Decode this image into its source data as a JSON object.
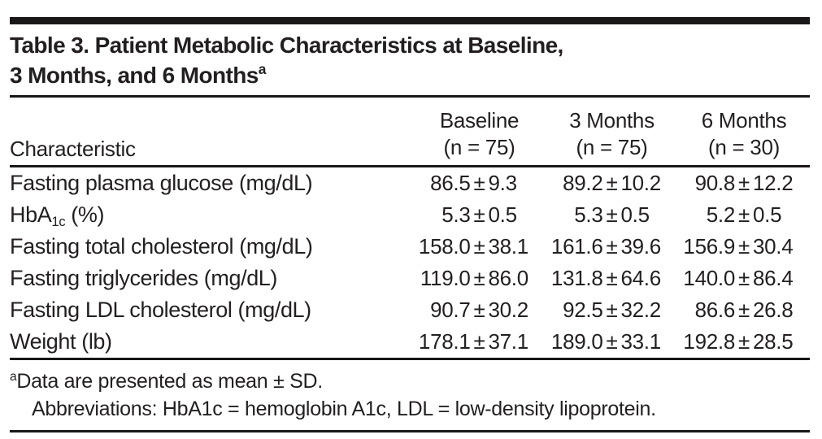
{
  "title": {
    "lines": [
      [
        {
          "t": "Table 3. Patient Metabolic Characteristics at Baseline,"
        }
      ],
      [
        {
          "t": "3 Months, and 6 Months"
        },
        {
          "t": "a",
          "sup": true
        }
      ]
    ]
  },
  "table": {
    "row_header": "Characteristic",
    "plus_minus": "±",
    "columns": [
      {
        "line1": "Baseline",
        "line2": "(n = 75)"
      },
      {
        "line1": "3 Months",
        "line2": "(n = 75)"
      },
      {
        "line1": "6 Months",
        "line2": "(n = 30)"
      }
    ],
    "rows": [
      {
        "label": [
          {
            "t": "Fasting plasma glucose (mg/dL)"
          }
        ],
        "values": [
          {
            "mean": "86.5",
            "sd": "9.3"
          },
          {
            "mean": "89.2",
            "sd": "10.2"
          },
          {
            "mean": "90.8",
            "sd": "12.2"
          }
        ]
      },
      {
        "label": [
          {
            "t": "HbA"
          },
          {
            "t": "1c",
            "sub": true
          },
          {
            "t": " (%)"
          }
        ],
        "values": [
          {
            "mean": "5.3",
            "sd": "0.5"
          },
          {
            "mean": "5.3",
            "sd": "0.5"
          },
          {
            "mean": "5.2",
            "sd": "0.5"
          }
        ]
      },
      {
        "label": [
          {
            "t": "Fasting total cholesterol (mg/dL)"
          }
        ],
        "values": [
          {
            "mean": "158.0",
            "sd": "38.1"
          },
          {
            "mean": "161.6",
            "sd": "39.6"
          },
          {
            "mean": "156.9",
            "sd": "30.4"
          }
        ]
      },
      {
        "label": [
          {
            "t": "Fasting triglycerides (mg/dL)"
          }
        ],
        "values": [
          {
            "mean": "119.0",
            "sd": "86.0"
          },
          {
            "mean": "131.8",
            "sd": "64.6"
          },
          {
            "mean": "140.0",
            "sd": "86.4"
          }
        ]
      },
      {
        "label": [
          {
            "t": "Fasting LDL cholesterol (mg/dL)"
          }
        ],
        "values": [
          {
            "mean": "90.7",
            "sd": "30.2"
          },
          {
            "mean": "92.5",
            "sd": "32.2"
          },
          {
            "mean": "86.6",
            "sd": "26.8"
          }
        ]
      },
      {
        "label": [
          {
            "t": "Weight (lb)"
          }
        ],
        "values": [
          {
            "mean": "178.1",
            "sd": "37.1"
          },
          {
            "mean": "189.0",
            "sd": "33.1"
          },
          {
            "mean": "192.8",
            "sd": "28.5"
          }
        ]
      }
    ]
  },
  "footnotes": [
    {
      "indent": false,
      "parts": [
        {
          "t": "a",
          "sup": true
        },
        {
          "t": "Data are presented as mean ± SD."
        }
      ]
    },
    {
      "indent": true,
      "parts": [
        {
          "t": "Abbreviations: HbA1c = hemoglobin A1c, LDL = low-density lipoprotein."
        }
      ]
    }
  ],
  "colors": {
    "text": "#231f20",
    "rule": "#1a1718",
    "background": "#ffffff"
  }
}
